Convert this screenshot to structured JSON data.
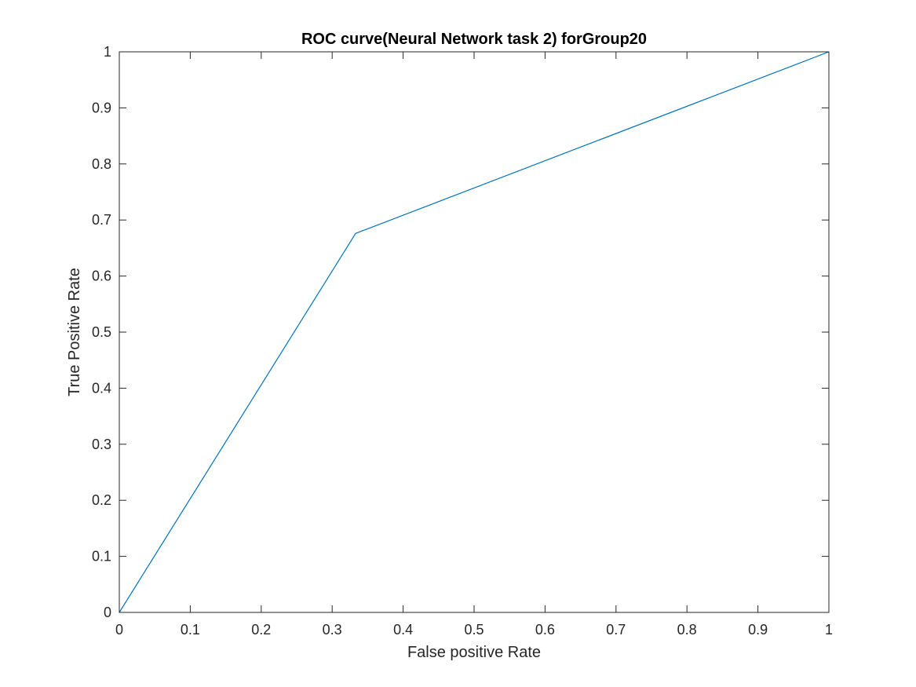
{
  "chart_data": {
    "type": "line",
    "title": "ROC curve(Neural Network task 2) forGroup20",
    "xlabel": "False positive Rate",
    "ylabel": "True Positive Rate",
    "xlim": [
      0,
      1
    ],
    "ylim": [
      0,
      1
    ],
    "x_ticks": [
      0,
      0.1,
      0.2,
      0.3,
      0.4,
      0.5,
      0.6,
      0.7,
      0.8,
      0.9,
      1
    ],
    "x_tick_labels": [
      "0",
      "0.1",
      "0.2",
      "0.3",
      "0.4",
      "0.5",
      "0.6",
      "0.7",
      "0.8",
      "0.9",
      "1"
    ],
    "y_ticks": [
      0,
      0.1,
      0.2,
      0.3,
      0.4,
      0.5,
      0.6,
      0.7,
      0.8,
      0.9,
      1
    ],
    "y_tick_labels": [
      "0",
      "0.1",
      "0.2",
      "0.3",
      "0.4",
      "0.5",
      "0.6",
      "0.7",
      "0.8",
      "0.9",
      "1"
    ],
    "grid": false,
    "series": [
      {
        "color": "#0072BD",
        "x": [
          0,
          0.333,
          1
        ],
        "y": [
          0,
          0.676,
          1
        ]
      }
    ]
  }
}
